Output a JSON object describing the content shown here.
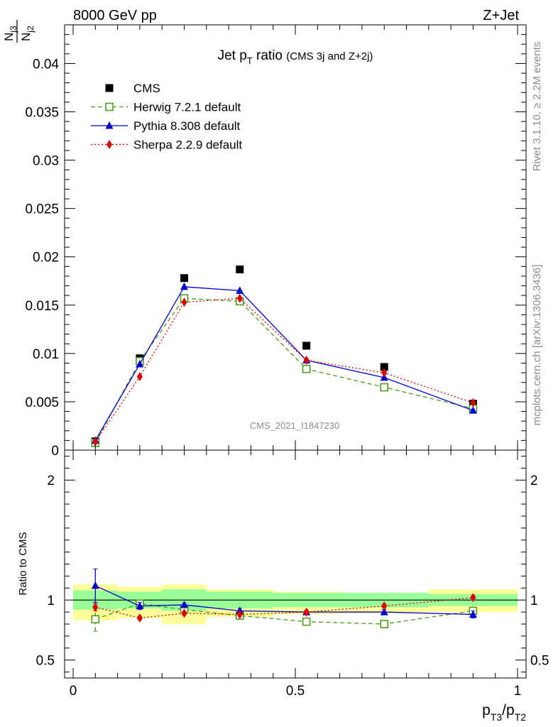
{
  "header": {
    "left": "8000 GeV pp",
    "right": "Z+Jet"
  },
  "side_labels": {
    "rivet": "Rivet 3.1.10, ≥ 2.2M events",
    "mcplots": "mcplots.cern.ch [arXiv:1306.3436]"
  },
  "watermark": "CMS_2021_I1847230",
  "chart_data": [
    {
      "type": "scatter",
      "panel": "main",
      "title": {
        "main": "Jet p",
        "sub": "T",
        "rest": " ratio",
        "note": "(CMS 3j and Z+2j)"
      },
      "ylabel": {
        "num": "N",
        "num_sub": "j3",
        "den": "N",
        "den_sub": "j2"
      },
      "xlim": [
        0,
        1
      ],
      "ylim": [
        0,
        0.044
      ],
      "yticks": [
        {
          "v": 0,
          "label": "0"
        },
        {
          "v": 0.005,
          "label": "0.005"
        },
        {
          "v": 0.01,
          "label": "0.01"
        },
        {
          "v": 0.015,
          "label": "0.015"
        },
        {
          "v": 0.02,
          "label": "0.02"
        },
        {
          "v": 0.025,
          "label": "0.025"
        },
        {
          "v": 0.03,
          "label": "0.03"
        },
        {
          "v": 0.035,
          "label": "0.035"
        },
        {
          "v": 0.04,
          "label": "0.04"
        }
      ],
      "x": [
        0.05,
        0.15,
        0.25,
        0.375,
        0.525,
        0.7,
        0.9
      ],
      "series": [
        {
          "name": "CMS",
          "color": "#000000",
          "marker": "square-filled",
          "line": "none",
          "values": [
            0.0009,
            0.0095,
            0.0178,
            0.0187,
            0.0108,
            0.0086,
            0.0048
          ]
        },
        {
          "name": "Herwig 7.2.1 default",
          "color": "#4c9a1a",
          "marker": "square-open",
          "line": "dashed",
          "values": [
            0.00075,
            0.0092,
            0.0157,
            0.0154,
            0.0084,
            0.0065,
            0.0043
          ]
        },
        {
          "name": "Pythia 8.308 default",
          "color": "#0000d0",
          "marker": "triangle",
          "line": "solid",
          "values": [
            0.001,
            0.0089,
            0.0169,
            0.0165,
            0.0093,
            0.0075,
            0.0041
          ]
        },
        {
          "name": "Sherpa 2.2.9 default",
          "color": "#e00000",
          "marker": "diamond",
          "line": "dotted",
          "values": [
            0.00085,
            0.0076,
            0.0153,
            0.0157,
            0.0093,
            0.008,
            0.0049
          ]
        }
      ],
      "legend": "top-left"
    },
    {
      "type": "line",
      "panel": "ratio",
      "ylabel": "Ratio to CMS",
      "xlabel": {
        "p1": "p",
        "s1": "T3",
        "slash": "/p",
        "s2": "T2"
      },
      "xlim": [
        0,
        1
      ],
      "ylim": [
        0.35,
        2.25
      ],
      "yticks": [
        {
          "v": 0.5,
          "label": "0.5"
        },
        {
          "v": 1,
          "label": "1"
        },
        {
          "v": 2,
          "label": "2"
        }
      ],
      "xticks": [
        {
          "v": 0,
          "label": "0"
        },
        {
          "v": 0.5,
          "label": "0.5"
        },
        {
          "v": 1,
          "label": "1"
        }
      ],
      "bands": [
        {
          "x0": 0.0,
          "x1": 0.1,
          "yellow": [
            0.83,
            1.13
          ],
          "green": [
            0.92,
            1.08
          ]
        },
        {
          "x0": 0.1,
          "x1": 0.2,
          "yellow": [
            0.85,
            1.11
          ],
          "green": [
            0.93,
            1.07
          ]
        },
        {
          "x0": 0.2,
          "x1": 0.3,
          "yellow": [
            0.8,
            1.13
          ],
          "green": [
            0.91,
            1.09
          ]
        },
        {
          "x0": 0.3,
          "x1": 0.45,
          "yellow": [
            0.86,
            1.09
          ],
          "green": [
            0.93,
            1.07
          ]
        },
        {
          "x0": 0.45,
          "x1": 0.6,
          "yellow": [
            0.88,
            1.07
          ],
          "green": [
            0.94,
            1.06
          ]
        },
        {
          "x0": 0.6,
          "x1": 0.8,
          "yellow": [
            0.89,
            1.06
          ],
          "green": [
            0.94,
            1.06
          ]
        },
        {
          "x0": 0.8,
          "x1": 1.0,
          "yellow": [
            0.9,
            1.09
          ],
          "green": [
            0.95,
            1.05
          ]
        }
      ],
      "x": [
        0.05,
        0.15,
        0.25,
        0.375,
        0.525,
        0.7,
        0.9
      ],
      "series": [
        {
          "name": "Herwig 7.2.1 default",
          "color": "#4c9a1a",
          "marker": "square-open",
          "line": "dashed",
          "values": [
            0.84,
            0.97,
            0.92,
            0.87,
            0.82,
            0.8,
            0.91
          ],
          "err": [
            0.1,
            0.02,
            0.02,
            0.02,
            0.015,
            0.02,
            0.03
          ]
        },
        {
          "name": "Pythia 8.308 default",
          "color": "#0000d0",
          "marker": "triangle",
          "line": "solid",
          "values": [
            1.12,
            0.95,
            0.96,
            0.91,
            0.9,
            0.9,
            0.88
          ],
          "err": [
            0.14,
            0.03,
            0.015,
            0.02,
            0.015,
            0.02,
            0.03
          ]
        },
        {
          "name": "Sherpa 2.2.9 default",
          "color": "#e00000",
          "marker": "diamond",
          "line": "dotted",
          "values": [
            0.94,
            0.85,
            0.89,
            0.88,
            0.9,
            0.95,
            1.02
          ],
          "err": [
            0.03,
            0.015,
            0.015,
            0.015,
            0.015,
            0.015,
            0.02
          ]
        }
      ]
    }
  ]
}
